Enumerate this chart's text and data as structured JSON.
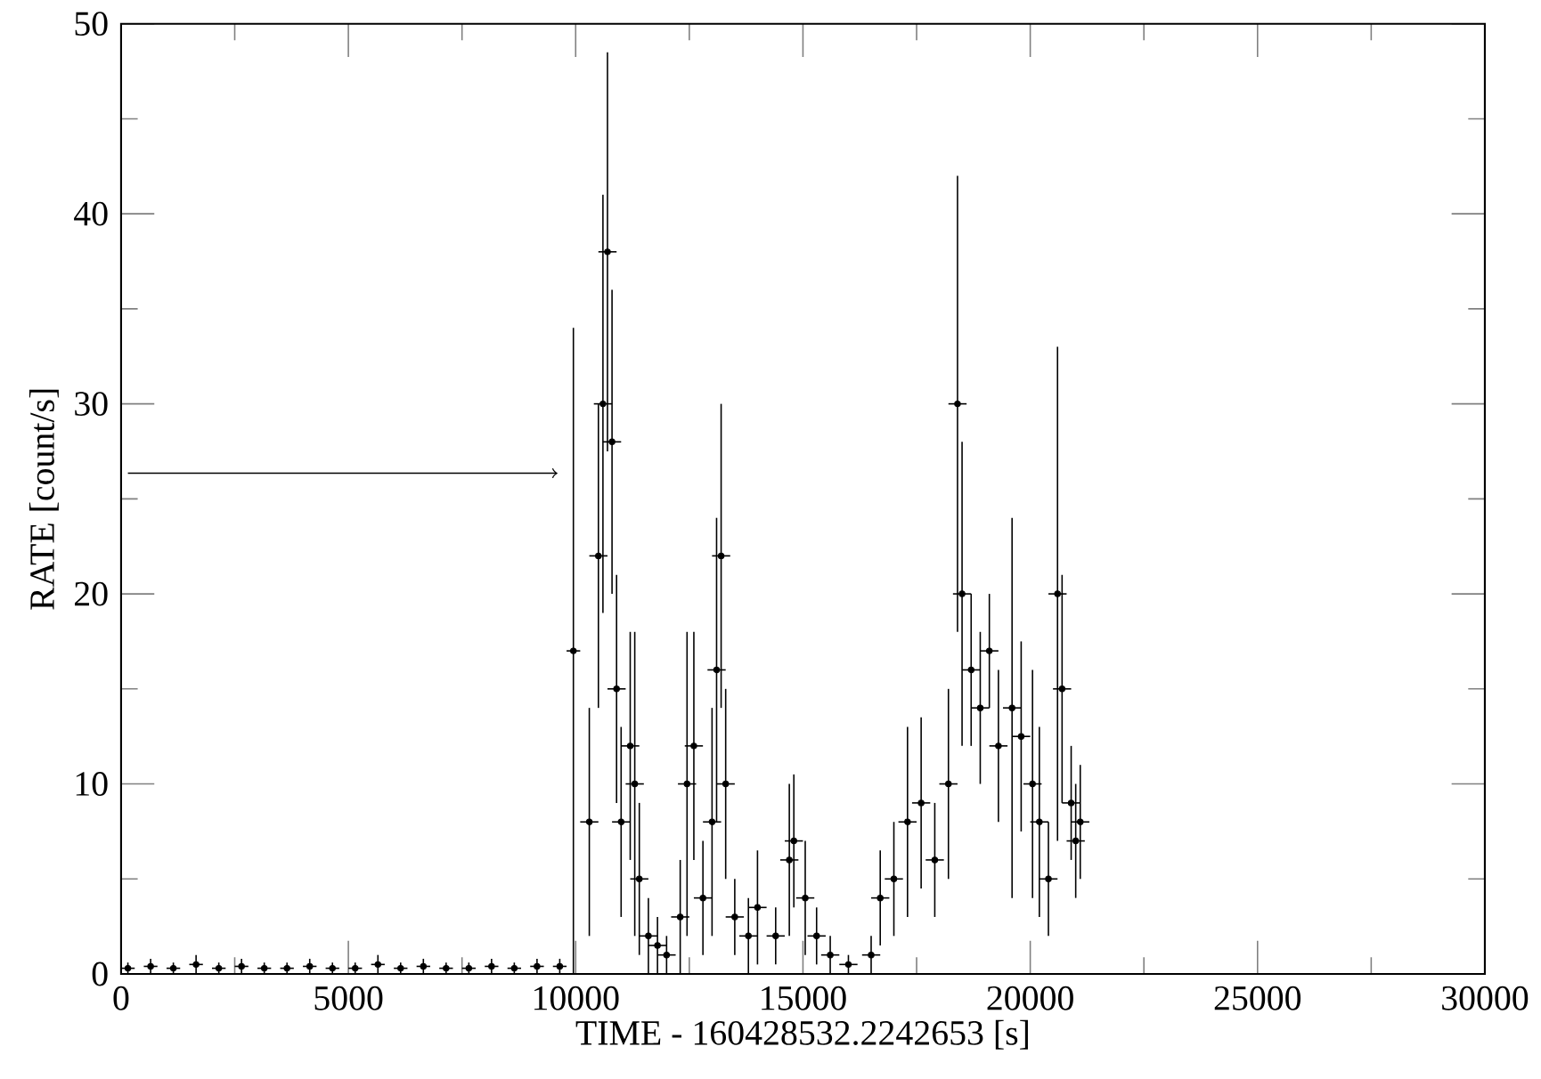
{
  "chart_data": {
    "type": "scatter",
    "xlabel": "TIME - 160428532.2242653 [s]",
    "ylabel": "RATE [count/s]",
    "xlim": [
      0,
      30000
    ],
    "ylim": [
      0,
      50
    ],
    "xticks": [
      0,
      5000,
      10000,
      15000,
      20000,
      25000,
      30000
    ],
    "yticks": [
      0,
      10,
      20,
      30,
      40,
      50
    ],
    "marker": "circle",
    "x": [
      150,
      650,
      1150,
      1650,
      2150,
      2650,
      3150,
      3650,
      4150,
      4650,
      5150,
      5650,
      6150,
      6650,
      7150,
      7650,
      8150,
      8650,
      9150,
      9650,
      9950,
      10300,
      10500,
      10600,
      10700,
      10800,
      10900,
      11000,
      11200,
      11300,
      11400,
      11600,
      11800,
      12000,
      12300,
      12450,
      12600,
      12800,
      13000,
      13100,
      13200,
      13300,
      13500,
      13800,
      14000,
      14400,
      14700,
      14800,
      15050,
      15300,
      15600,
      16000,
      16500,
      16700,
      17000,
      17300,
      17600,
      17900,
      18200,
      18400,
      18500,
      18700,
      18900,
      19100,
      19300,
      19600,
      19800,
      20050,
      20200,
      20400,
      20600,
      20700,
      20900,
      21000,
      21100
    ],
    "series": [
      {
        "color": "#000000",
        "values": [
          0.3,
          0.4,
          0.3,
          0.5,
          0.3,
          0.4,
          0.3,
          0.3,
          0.4,
          0.3,
          0.3,
          0.5,
          0.3,
          0.4,
          0.3,
          0.3,
          0.4,
          0.3,
          0.4,
          0.4,
          17,
          8,
          22,
          30,
          38,
          28,
          15,
          8,
          12,
          10,
          5,
          2,
          1.5,
          1,
          3,
          10,
          12,
          4,
          8,
          16,
          22,
          10,
          3,
          2,
          3.5,
          2,
          6,
          7,
          4,
          2,
          1,
          0.5,
          1,
          4,
          5,
          8,
          9,
          6,
          10,
          30,
          20,
          16,
          14,
          17,
          12,
          14,
          12.5,
          10,
          8,
          5,
          20,
          15,
          9,
          7,
          8
        ],
        "errors": [
          0.3,
          0.4,
          0.3,
          0.5,
          0.3,
          0.4,
          0.3,
          0.3,
          0.4,
          0.3,
          0.3,
          0.5,
          0.3,
          0.4,
          0.3,
          0.3,
          0.4,
          0.3,
          0.4,
          0.4,
          17,
          6,
          8,
          11,
          10.5,
          8,
          6,
          5,
          6,
          8,
          4,
          2,
          1.5,
          1,
          3,
          8,
          6,
          3,
          6,
          8,
          8,
          5,
          2,
          2,
          3,
          1.5,
          4,
          3.5,
          3,
          1.5,
          1,
          0.5,
          1,
          2.5,
          3,
          5,
          4.5,
          3,
          5,
          12,
          8,
          4,
          4,
          3,
          4,
          10,
          5,
          6,
          5,
          3,
          13,
          6,
          3,
          3,
          3
        ],
        "xerrors": [
          150,
          150,
          150,
          150,
          150,
          150,
          150,
          150,
          150,
          150,
          150,
          150,
          150,
          150,
          150,
          150,
          150,
          150,
          150,
          150,
          150,
          200,
          200,
          200,
          200,
          200,
          200,
          200,
          200,
          200,
          200,
          200,
          200,
          200,
          200,
          200,
          200,
          200,
          200,
          200,
          200,
          200,
          200,
          200,
          200,
          200,
          200,
          200,
          200,
          200,
          200,
          200,
          200,
          200,
          200,
          200,
          200,
          200,
          200,
          200,
          200,
          200,
          200,
          200,
          200,
          200,
          200,
          200,
          200,
          200,
          200,
          200,
          200,
          200,
          200
        ]
      }
    ]
  }
}
